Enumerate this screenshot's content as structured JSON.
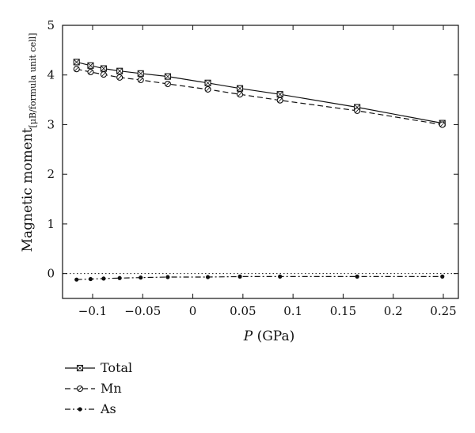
{
  "chart_data": {
    "type": "line",
    "xlabel": {
      "var": "P",
      "unit": " (GPa)"
    },
    "ylabel": {
      "main": "Magnetic moment",
      "sub": "[μB/formula unit cell]"
    },
    "xlim": [
      -0.13,
      0.265
    ],
    "ylim": [
      -0.5,
      5
    ],
    "xticks": [
      -0.1,
      -0.05,
      0,
      0.05,
      0.1,
      0.15,
      0.2,
      0.25
    ],
    "xtick_labels": [
      "−0.1",
      "−0.05",
      "0",
      "0.05",
      "0.1",
      "0.15",
      "0.2",
      "0.25"
    ],
    "yticks": [
      0,
      1,
      2,
      3,
      4,
      5
    ],
    "ytick_labels": [
      "0",
      "1",
      "2",
      "3",
      "4",
      "5"
    ],
    "reference_line": {
      "y": 0,
      "style": "dotted"
    },
    "grid": false,
    "legend_position": "below-left",
    "series": [
      {
        "name": "Total",
        "marker": "square",
        "line_style": "solid",
        "x": [
          -0.116,
          -0.102,
          -0.089,
          -0.073,
          -0.052,
          -0.025,
          0.015,
          0.047,
          0.087,
          0.164,
          0.249
        ],
        "values": [
          4.26,
          4.19,
          4.13,
          4.08,
          4.03,
          3.97,
          3.84,
          3.73,
          3.61,
          3.35,
          3.03
        ]
      },
      {
        "name": "Mn",
        "marker": "circle",
        "line_style": "dashed",
        "x": [
          -0.116,
          -0.102,
          -0.089,
          -0.073,
          -0.052,
          -0.025,
          0.015,
          0.047,
          0.087,
          0.164,
          0.249
        ],
        "values": [
          4.12,
          4.06,
          4.01,
          3.95,
          3.9,
          3.82,
          3.71,
          3.61,
          3.49,
          3.28,
          3.0
        ]
      },
      {
        "name": "As",
        "marker": "dot",
        "line_style": "dashdot",
        "x": [
          -0.116,
          -0.102,
          -0.089,
          -0.073,
          -0.052,
          -0.025,
          0.015,
          0.047,
          0.087,
          0.164,
          0.249
        ],
        "values": [
          -0.12,
          -0.11,
          -0.1,
          -0.09,
          -0.08,
          -0.07,
          -0.07,
          -0.06,
          -0.06,
          -0.06,
          -0.06
        ]
      }
    ]
  }
}
